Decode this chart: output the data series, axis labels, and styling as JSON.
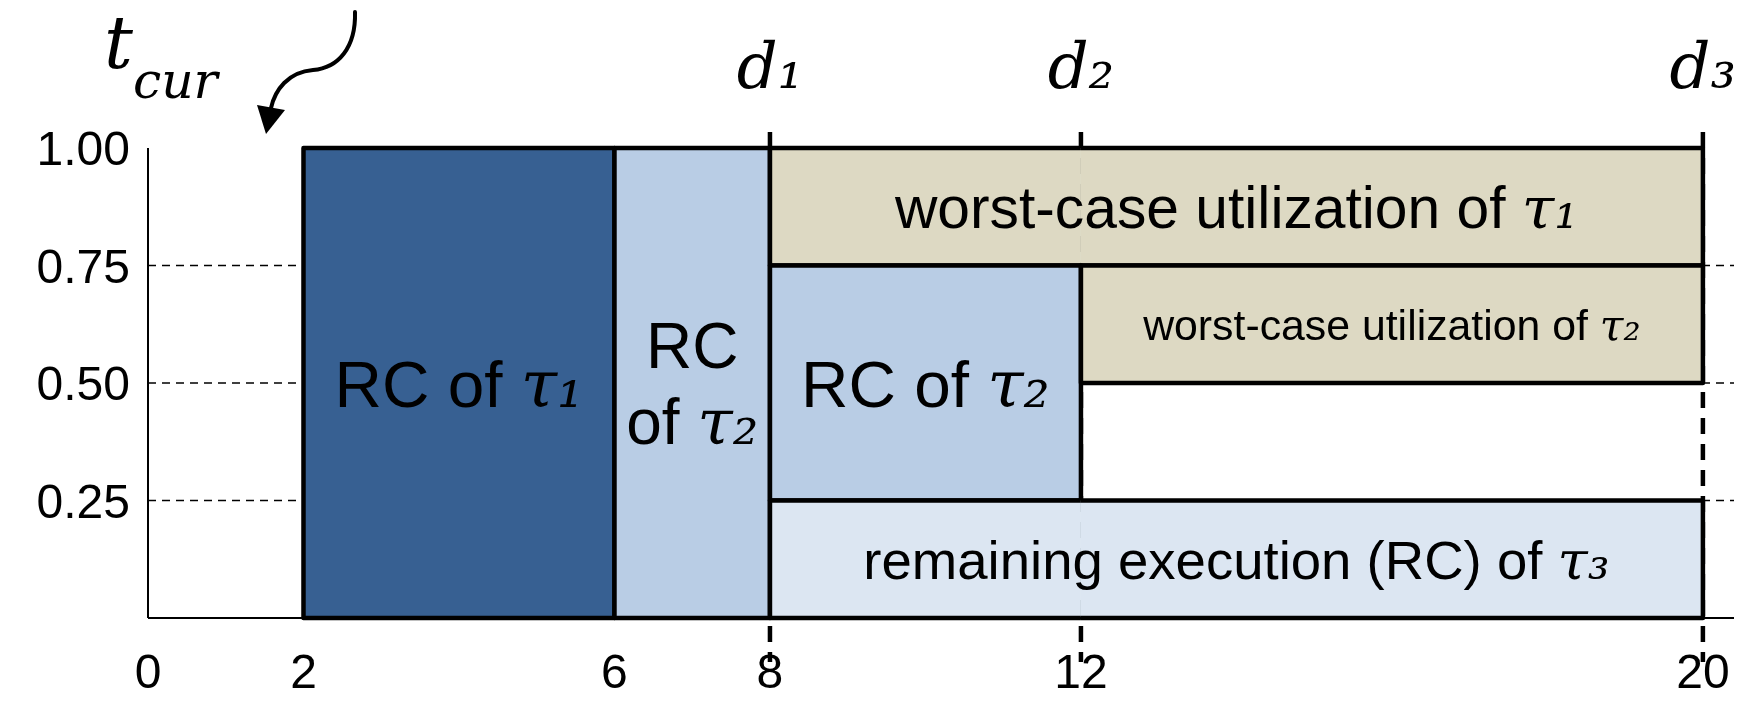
{
  "chart_data": {
    "type": "histogram",
    "annotations": [
      "t$_{cur}$"
    ],
    "bins": [
      2,
      6,
      8,
      12,
      20
    ],
    "xlim": [
      0,
      20.4
    ],
    "xticks": [
      0,
      2,
      6,
      8,
      12,
      20
    ],
    "ylim": [
      0,
      1
    ],
    "yticks": [
      0.25,
      {
        "value": 0.5,
        "label": "0.50"
      },
      0.75,
      {
        "value": 1,
        "label": "1.00"
      }
    ],
    "grid": "y",
    "ref_lines": [
      {
        "axis": "x",
        "value": 8,
        "label": "d₁",
        "line_style": "dashed"
      },
      {
        "axis": "x",
        "value": 12,
        "label": "d₂",
        "line_style": "dashed"
      },
      {
        "axis": "x",
        "value": 20,
        "label": "d₃",
        "line_style": "dashed"
      }
    ],
    "series": [
      {
        "name": "RC of τ₁",
        "color": "#376092",
        "values": [
          1,
          null,
          null,
          null
        ]
      },
      {
        "name": "RC of τ₂",
        "color": "#b9cde5",
        "values": [
          null,
          1,
          null,
          null
        ]
      },
      {
        "name": "worst-case utilization of τ₁",
        "color": "#ddd9c3",
        "values": [
          null,
          null,
          0.25,
          0.25
        ],
        "base": [
          null,
          null,
          0.75,
          0.75
        ]
      },
      {
        "name": "RC of τ₂",
        "color": "#b9cde5",
        "values": [
          null,
          null,
          0.5,
          null
        ],
        "base": [
          null,
          null,
          0.25,
          null
        ]
      },
      {
        "name": "worst-case utilization of τ₂",
        "color": "#ddd9c3",
        "values": [
          null,
          null,
          null,
          0.25
        ],
        "base": [
          null,
          null,
          null,
          0.5
        ]
      },
      {
        "name": "remaining execution (RC) of τ₃",
        "color": "#dce6f2",
        "values": [
          null,
          null,
          0.25,
          0.25
        ]
      }
    ]
  }
}
